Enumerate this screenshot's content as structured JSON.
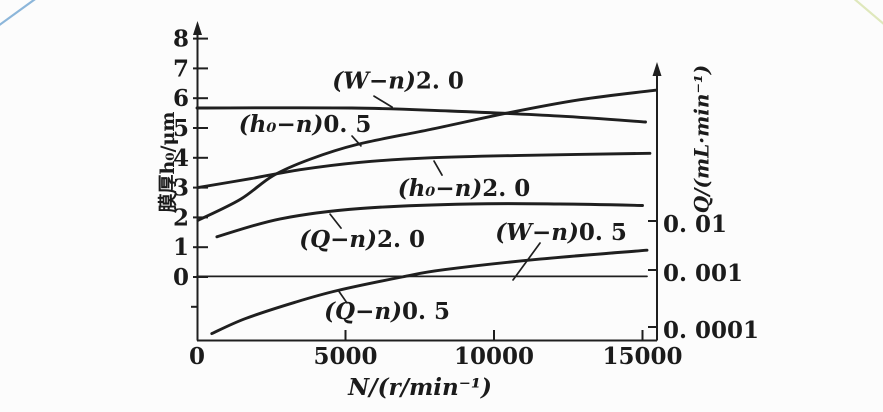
{
  "page": {
    "background": "#fcfcfc"
  },
  "decorations": {
    "top_left_color": "#8cb6da",
    "top_right_color": "#dfe8bc"
  },
  "chart_data": {
    "type": "line",
    "title": "",
    "xlabel": "N/(r/min⁻¹)",
    "ylabel_left": "膜厚h₀/μm",
    "ylabel_right": "Q/(mL·min⁻¹)",
    "grid": false,
    "legend": "inline-annotations",
    "xlim": [
      0,
      15500
    ],
    "ylim_left": [
      -2.2,
      8.6
    ],
    "x_ticks": [
      0,
      5000,
      10000,
      15000
    ],
    "x_tick_labels": [
      "0",
      "5000",
      "10000",
      "15000"
    ],
    "y_left_ticks": [
      8,
      7,
      6,
      5,
      4,
      3,
      2,
      1,
      0
    ],
    "y_left_minor_ticks": [
      -1
    ],
    "y_right_scale": "log",
    "y_right_ticks": [
      0.01,
      0.001,
      0.0001
    ],
    "y_right_tick_labels": [
      "0. 01",
      "0. 001",
      "0. 0001"
    ],
    "series": [
      {
        "id": "W-n-2.0",
        "term": "(W−n)",
        "coef": "2. 0",
        "axis": "left",
        "stroke_width": 2.9,
        "points": [
          [
            0,
            5.67
          ],
          [
            5200,
            5.67
          ],
          [
            8500,
            5.57
          ],
          [
            12200,
            5.4
          ],
          [
            15100,
            5.2
          ]
        ]
      },
      {
        "id": "h0-n-0.5",
        "term": "(h₀−n)",
        "coef": "0. 5",
        "axis": "left",
        "stroke_width": 2.9,
        "points": [
          [
            30,
            1.9
          ],
          [
            1450,
            2.6
          ],
          [
            2560,
            3.4
          ],
          [
            3800,
            3.95
          ],
          [
            5400,
            4.45
          ],
          [
            7850,
            4.95
          ],
          [
            10440,
            5.5
          ],
          [
            12900,
            5.95
          ],
          [
            15450,
            6.27
          ]
        ]
      },
      {
        "id": "h0-n-2.0",
        "term": "(h₀−n)",
        "coef": "2. 0",
        "axis": "left",
        "stroke_width": 2.9,
        "points": [
          [
            30,
            3.0
          ],
          [
            1800,
            3.3
          ],
          [
            3470,
            3.6
          ],
          [
            5500,
            3.85
          ],
          [
            7850,
            4.0
          ],
          [
            10900,
            4.08
          ],
          [
            15250,
            4.15
          ]
        ]
      },
      {
        "id": "Q-n-2.0",
        "term": "(Q−n)",
        "coef": "2. 0",
        "axis": "left",
        "stroke_width": 2.9,
        "points": [
          [
            670,
            1.35
          ],
          [
            2800,
            1.95
          ],
          [
            5500,
            2.3
          ],
          [
            9200,
            2.45
          ],
          [
            12200,
            2.45
          ],
          [
            15000,
            2.4
          ]
        ]
      },
      {
        "id": "W-n-0.5",
        "term": "(W−n)",
        "coef": "0. 5",
        "axis": "left",
        "stroke_width": 1.8,
        "points": [
          [
            0,
            0.02
          ],
          [
            15150,
            0.02
          ]
        ]
      },
      {
        "id": "Q-n-0.5",
        "term": "(Q−n)",
        "coef": "0. 5",
        "axis": "left",
        "stroke_width": 2.9,
        "points": [
          [
            500,
            -1.9
          ],
          [
            1620,
            -1.4
          ],
          [
            3300,
            -0.85
          ],
          [
            4750,
            -0.45
          ],
          [
            6900,
            0.0
          ],
          [
            8350,
            0.25
          ],
          [
            11550,
            0.6
          ],
          [
            15150,
            0.9
          ]
        ]
      }
    ],
    "annotations": [
      {
        "term": "(W−n)",
        "coef": "2. 0",
        "n": 6770,
        "h": 6.6,
        "leader": [
          5960,
          6.07,
          6570,
          5.7
        ]
      },
      {
        "term": "(h₀−n)",
        "coef": "0. 5",
        "n": 3640,
        "h": 5.13,
        "leader": [
          5220,
          4.73,
          5520,
          4.4
        ]
      },
      {
        "term": "(h₀−n)",
        "coef": "2. 0",
        "n": 8990,
        "h": 2.99,
        "leader": [
          7980,
          3.89,
          8250,
          3.42
        ]
      },
      {
        "term": "(Q−n)",
        "coef": "2. 0",
        "n": 5560,
        "h": 1.28,
        "leader": [
          4480,
          2.11,
          4850,
          1.64
        ]
      },
      {
        "term": "(W−n)",
        "coef": "0. 5",
        "n": 12260,
        "h": 1.51,
        "leader": [
          10640,
          -0.1,
          11550,
          1.14
        ]
      },
      {
        "term": "(Q−n)",
        "coef": "0. 5",
        "n": 6400,
        "h": -1.14,
        "leader": [
          4750,
          -0.44,
          5050,
          -0.87
        ]
      }
    ]
  }
}
